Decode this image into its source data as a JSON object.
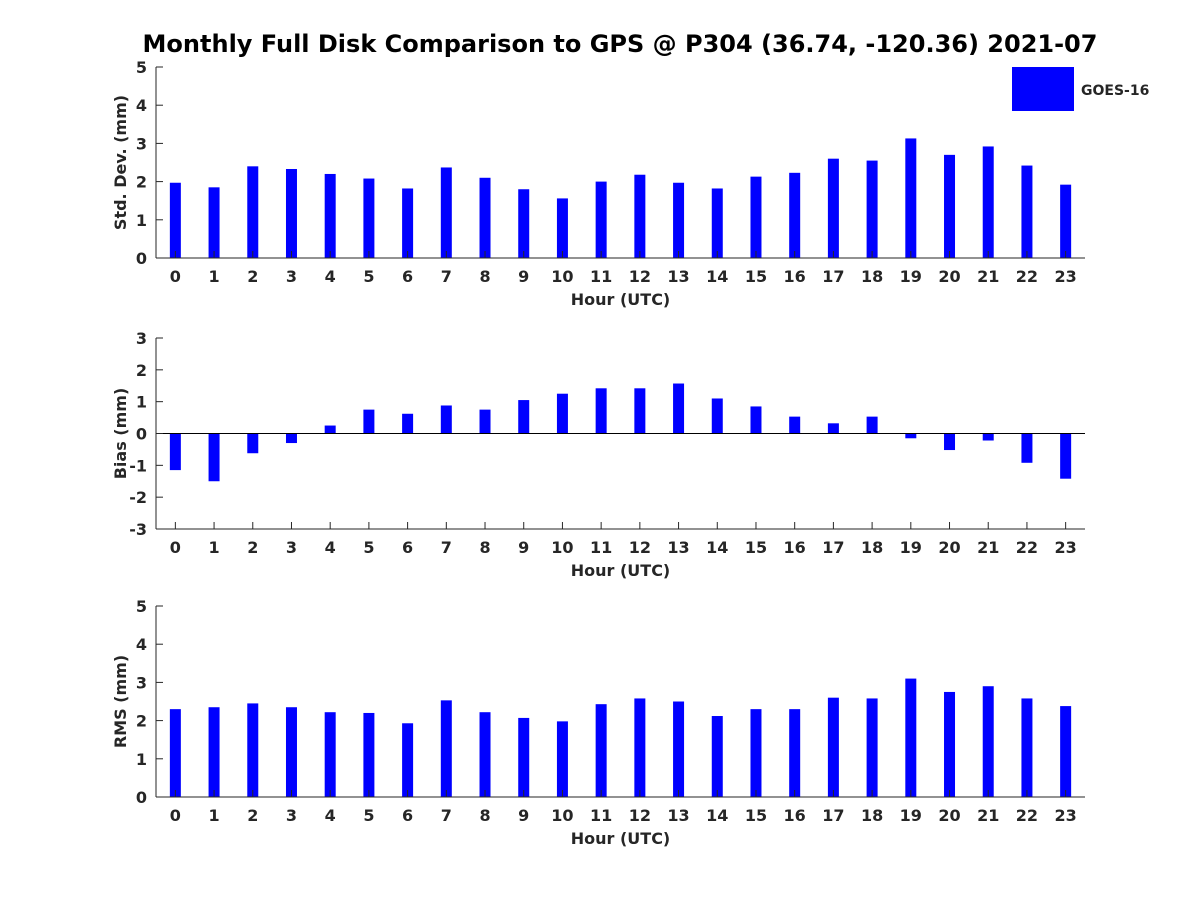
{
  "title": "Monthly Full Disk Comparison to GPS @ P304 (36.74, -120.36) 2021-07",
  "legend": {
    "label": "GOES-16",
    "color": "#0000ff",
    "placement": "top-right"
  },
  "chart_data": [
    {
      "type": "bar",
      "xlabel": "Hour (UTC)",
      "ylabel": "Std. Dev. (mm)",
      "ylim": [
        0,
        5
      ],
      "yticks": [
        0,
        1,
        2,
        3,
        4,
        5
      ],
      "categories": [
        "0",
        "1",
        "2",
        "3",
        "4",
        "5",
        "6",
        "7",
        "8",
        "9",
        "10",
        "11",
        "12",
        "13",
        "14",
        "15",
        "16",
        "17",
        "18",
        "19",
        "20",
        "21",
        "22",
        "23"
      ],
      "series": [
        {
          "name": "GOES-16",
          "values": [
            1.97,
            1.85,
            2.4,
            2.33,
            2.2,
            2.08,
            1.82,
            2.37,
            2.1,
            1.8,
            1.56,
            2.0,
            2.18,
            1.97,
            1.82,
            2.13,
            2.23,
            2.6,
            2.55,
            3.13,
            2.7,
            2.92,
            2.42,
            1.92
          ]
        }
      ]
    },
    {
      "type": "bar",
      "xlabel": "Hour (UTC)",
      "ylabel": "Bias (mm)",
      "ylim": [
        -3,
        3
      ],
      "yticks": [
        -3,
        -2,
        -1,
        0,
        1,
        2,
        3
      ],
      "categories": [
        "0",
        "1",
        "2",
        "3",
        "4",
        "5",
        "6",
        "7",
        "8",
        "9",
        "10",
        "11",
        "12",
        "13",
        "14",
        "15",
        "16",
        "17",
        "18",
        "19",
        "20",
        "21",
        "22",
        "23"
      ],
      "series": [
        {
          "name": "GOES-16",
          "values": [
            -1.15,
            -1.5,
            -0.62,
            -0.3,
            0.25,
            0.75,
            0.62,
            0.88,
            0.75,
            1.05,
            1.25,
            1.42,
            1.42,
            1.57,
            1.1,
            0.85,
            0.53,
            0.32,
            0.53,
            -0.15,
            -0.52,
            -0.22,
            -0.92,
            -1.42
          ]
        }
      ]
    },
    {
      "type": "bar",
      "xlabel": "Hour (UTC)",
      "ylabel": "RMS (mm)",
      "ylim": [
        0,
        5
      ],
      "yticks": [
        0,
        1,
        2,
        3,
        4,
        5
      ],
      "categories": [
        "0",
        "1",
        "2",
        "3",
        "4",
        "5",
        "6",
        "7",
        "8",
        "9",
        "10",
        "11",
        "12",
        "13",
        "14",
        "15",
        "16",
        "17",
        "18",
        "19",
        "20",
        "21",
        "22",
        "23"
      ],
      "series": [
        {
          "name": "GOES-16",
          "values": [
            2.3,
            2.35,
            2.45,
            2.35,
            2.22,
            2.2,
            1.93,
            2.53,
            2.22,
            2.07,
            1.98,
            2.43,
            2.58,
            2.5,
            2.12,
            2.3,
            2.3,
            2.6,
            2.58,
            3.1,
            2.75,
            2.9,
            2.58,
            2.38
          ]
        }
      ]
    }
  ]
}
